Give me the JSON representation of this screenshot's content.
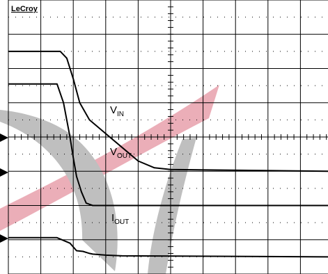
{
  "brand": "LeCroy",
  "colors": {
    "background": "#ffffff",
    "grid": "#000000",
    "trace": "#000000",
    "watermark_red": "#e8a0ac",
    "watermark_gray": "#b4b4b4"
  },
  "channel_markers": [
    "arrow-ch1-icon",
    "arrow-ch2-icon",
    "arrow-ch3-icon"
  ],
  "chart_data": {
    "type": "line",
    "grid": true,
    "grid_divisions": {
      "x": 10,
      "y": 8
    },
    "x_range_div": [
      0,
      10
    ],
    "y_range_div": [
      0,
      8
    ],
    "series": [
      {
        "name": "VIN",
        "label_main": "V",
        "label_sub": "IN",
        "x": [
          0,
          1.6,
          1.8,
          2.0,
          2.2,
          2.5,
          3.0,
          3.5,
          4.0,
          4.5,
          5.0,
          10
        ],
        "y": [
          6.5,
          6.5,
          6.3,
          5.7,
          5.0,
          4.5,
          4.1,
          3.7,
          3.3,
          3.1,
          3.05,
          3.0
        ]
      },
      {
        "name": "VOUT",
        "label_main": "V",
        "label_sub": "OUT",
        "x": [
          0,
          1.5,
          1.7,
          1.9,
          2.0,
          2.1,
          2.25,
          2.4,
          2.6,
          10
        ],
        "y": [
          5.55,
          5.55,
          5.0,
          4.0,
          3.4,
          2.85,
          2.4,
          2.07,
          2.0,
          2.0
        ]
      },
      {
        "name": "IOUT",
        "label_main": "I",
        "label_sub": "OUT",
        "x": [
          0,
          1.5,
          1.9,
          2.1,
          2.3,
          2.5,
          2.6,
          3.0,
          3.5,
          10
        ],
        "y": [
          1.06,
          1.06,
          0.9,
          0.68,
          0.66,
          0.6,
          0.58,
          0.55,
          0.53,
          0.5
        ]
      }
    ],
    "annotations": [
      "VIN",
      "VOUT",
      "IOUT"
    ]
  }
}
